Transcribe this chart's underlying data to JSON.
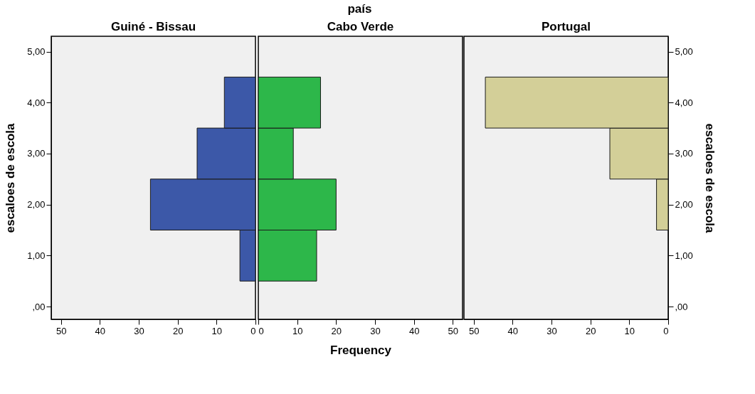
{
  "chart_data": [
    {
      "type": "histogram",
      "orientation": "horizontal",
      "title": "Guiné - Bissau",
      "annotations": [
        "país"
      ],
      "ylabel": "escaloes de escola",
      "bins": [
        0.5,
        1.5,
        2.5,
        3.5,
        4.5
      ],
      "values": [
        4,
        27,
        15,
        8
      ],
      "color": "#3c58a8",
      "xlim": [
        52.5,
        0
      ],
      "xticks": [
        50,
        40,
        30,
        20,
        10,
        0
      ],
      "ylim": [
        -0.25,
        5.3
      ],
      "yticks": [
        {
          "value": 0,
          "label": ",00"
        },
        {
          "value": 1,
          "label": "1,00"
        },
        {
          "value": 2,
          "label": "2,00"
        },
        {
          "value": 3,
          "label": "3,00"
        },
        {
          "value": 4,
          "label": "4,00"
        },
        {
          "value": 5,
          "label": "5,00"
        }
      ],
      "grid": false
    },
    {
      "type": "histogram",
      "orientation": "horizontal",
      "title": "Cabo Verde",
      "xlabel": "Frequency",
      "bins": [
        0.5,
        1.5,
        2.5,
        3.5,
        4.5
      ],
      "values": [
        15,
        20,
        9,
        16
      ],
      "color": "#2db74a",
      "xlim": [
        0,
        52.5
      ],
      "xticks": [
        0,
        10,
        20,
        30,
        40,
        50
      ],
      "ylim": [
        -0.25,
        5.3
      ],
      "tick_labels": "x",
      "grid": false
    },
    {
      "type": "histogram",
      "orientation": "horizontal",
      "title": "Portugal",
      "ylabel": "escaloes de escola",
      "bins": [
        1.5,
        2.5,
        3.5,
        4.5
      ],
      "values": [
        3,
        15,
        47
      ],
      "color": "#d3cf98",
      "xlim": [
        52.5,
        0
      ],
      "xticks": [
        50,
        40,
        30,
        20,
        10,
        0
      ],
      "ylim": [
        -0.25,
        5.3
      ],
      "yticks": [
        {
          "value": 0,
          "label": ",00"
        },
        {
          "value": 1,
          "label": "1,00"
        },
        {
          "value": 2,
          "label": "2,00"
        },
        {
          "value": 3,
          "label": "3,00"
        },
        {
          "value": 4,
          "label": "4,00"
        },
        {
          "value": 5,
          "label": "5,00"
        }
      ],
      "grid": false
    }
  ]
}
